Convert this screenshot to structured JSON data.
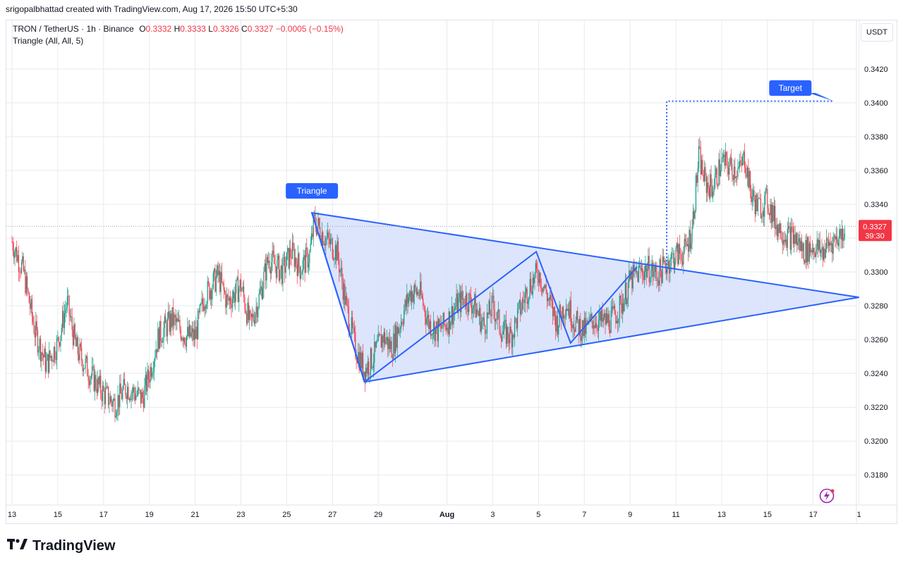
{
  "header": {
    "credit": "srigopalbhattad created with TradingView.com, Aug 17, 2026 15:50 UTC+5:30",
    "symbol": "TRON / TetherUS · 1h · Binance",
    "o_label": "O",
    "o_value": "0.3332",
    "h_label": "H",
    "h_value": "0.3333",
    "l_label": "L",
    "l_value": "0.3326",
    "c_label": "C",
    "c_value": "0.3327",
    "change": "−0.0005 (−0.15%)",
    "indicator": "Triangle (All, All, 5)",
    "currency_button": "USDT"
  },
  "chart_data": {
    "type": "candlestick",
    "symbol": "TRON / TetherUS",
    "interval": "1h",
    "exchange": "Binance",
    "y_ticks": [
      "0.3420",
      "0.3400",
      "0.3380",
      "0.3360",
      "0.3340",
      "0.3320",
      "0.3300",
      "0.3280",
      "0.3260",
      "0.3240",
      "0.3220",
      "0.3200",
      "0.3180"
    ],
    "ylim": [
      0.3164,
      0.3446
    ],
    "x_ticks": [
      "13",
      "15",
      "17",
      "19",
      "21",
      "23",
      "25",
      "27",
      "29",
      "Aug",
      "3",
      "5",
      "7",
      "9",
      "11",
      "13",
      "15",
      "17",
      "1"
    ],
    "x_tick_days": [
      -19,
      -17,
      -15,
      -13,
      -11,
      -9,
      -7,
      -5,
      -3,
      0,
      2,
      4,
      6,
      8,
      10,
      12,
      14,
      16,
      18
    ],
    "last_price": "0.3327",
    "countdown": "39:30",
    "close_path": [
      [
        -19.0,
        0.3318
      ],
      [
        -18.5,
        0.33
      ],
      [
        -18.0,
        0.3265
      ],
      [
        -17.5,
        0.3245
      ],
      [
        -17.0,
        0.3258
      ],
      [
        -16.6,
        0.3282
      ],
      [
        -16.2,
        0.3255
      ],
      [
        -15.6,
        0.324
      ],
      [
        -15.0,
        0.3228
      ],
      [
        -14.5,
        0.3222
      ],
      [
        -14.0,
        0.3232
      ],
      [
        -13.3,
        0.3225
      ],
      [
        -13.0,
        0.324
      ],
      [
        -12.6,
        0.3262
      ],
      [
        -12.0,
        0.3272
      ],
      [
        -11.4,
        0.3262
      ],
      [
        -11.0,
        0.3262
      ],
      [
        -10.6,
        0.3285
      ],
      [
        -10.0,
        0.3298
      ],
      [
        -9.6,
        0.3282
      ],
      [
        -9.0,
        0.3292
      ],
      [
        -8.6,
        0.3268
      ],
      [
        -8.2,
        0.3285
      ],
      [
        -7.8,
        0.3308
      ],
      [
        -7.2,
        0.33
      ],
      [
        -6.8,
        0.3312
      ],
      [
        -6.4,
        0.3302
      ],
      [
        -6.0,
        0.331
      ],
      [
        -5.8,
        0.333
      ],
      [
        -5.2,
        0.3318
      ],
      [
        -4.8,
        0.3312
      ],
      [
        -4.4,
        0.328
      ],
      [
        -4.0,
        0.3255
      ],
      [
        -3.6,
        0.3242
      ],
      [
        -3.2,
        0.325
      ],
      [
        -2.8,
        0.3262
      ],
      [
        -2.4,
        0.3255
      ],
      [
        -2.0,
        0.3272
      ],
      [
        -1.6,
        0.3288
      ],
      [
        -1.2,
        0.3288
      ],
      [
        -0.8,
        0.327
      ],
      [
        -0.4,
        0.3265
      ],
      [
        0.0,
        0.327
      ],
      [
        0.4,
        0.328
      ],
      [
        0.8,
        0.3285
      ],
      [
        1.2,
        0.328
      ],
      [
        1.6,
        0.3268
      ],
      [
        2.0,
        0.328
      ],
      [
        2.4,
        0.3265
      ],
      [
        2.8,
        0.3262
      ],
      [
        3.2,
        0.3278
      ],
      [
        3.6,
        0.3292
      ],
      [
        4.0,
        0.33
      ],
      [
        4.4,
        0.3285
      ],
      [
        4.8,
        0.327
      ],
      [
        5.2,
        0.3282
      ],
      [
        5.6,
        0.327
      ],
      [
        6.0,
        0.3265
      ],
      [
        6.4,
        0.3272
      ],
      [
        6.8,
        0.327
      ],
      [
        7.2,
        0.3272
      ],
      [
        7.6,
        0.328
      ],
      [
        8.0,
        0.3295
      ],
      [
        8.4,
        0.33
      ],
      [
        8.8,
        0.3302
      ],
      [
        9.2,
        0.3298
      ],
      [
        9.6,
        0.3305
      ],
      [
        10.0,
        0.331
      ],
      [
        10.4,
        0.3312
      ],
      [
        10.7,
        0.3325
      ],
      [
        11.0,
        0.3368
      ],
      [
        11.3,
        0.3352
      ],
      [
        11.6,
        0.335
      ],
      [
        12.0,
        0.3365
      ],
      [
        12.4,
        0.3362
      ],
      [
        12.8,
        0.336
      ],
      [
        13.0,
        0.3368
      ],
      [
        13.3,
        0.3345
      ],
      [
        13.6,
        0.3338
      ],
      [
        14.0,
        0.3342
      ],
      [
        14.4,
        0.3328
      ],
      [
        14.8,
        0.3322
      ],
      [
        15.2,
        0.332
      ],
      [
        15.6,
        0.3312
      ],
      [
        16.0,
        0.3315
      ],
      [
        16.4,
        0.3312
      ],
      [
        16.8,
        0.3318
      ],
      [
        17.2,
        0.3322
      ],
      [
        17.4,
        0.3327
      ]
    ],
    "pattern": {
      "name": "Triangle",
      "vertices": [
        [
          -5.9,
          0.3335
        ],
        [
          -3.6,
          0.3235
        ],
        [
          3.9,
          0.3312
        ],
        [
          5.4,
          0.3258
        ],
        [
          8.3,
          0.3303
        ],
        [
          18.0,
          0.3285
        ]
      ],
      "zigzag": [
        [
          -5.9,
          0.3335
        ],
        [
          -3.6,
          0.3235
        ],
        [
          3.9,
          0.3312
        ],
        [
          5.4,
          0.3258
        ],
        [
          8.3,
          0.3303
        ]
      ],
      "target_label": "Target",
      "target_start": [
        9.6,
        0.33
      ],
      "target_level": 0.3401,
      "target_end_day": 16.9
    }
  },
  "colors": {
    "up": "#089981",
    "down": "#f23645",
    "pattern": "#2962ff",
    "pattern_fill": "#d6e0fb",
    "grid": "#e8e9ee",
    "axis_text": "#131722"
  },
  "brand": {
    "logo_icon": "tradingview-logo-icon",
    "name": "TradingView"
  },
  "widget": {
    "icon": "lightning-icon"
  }
}
